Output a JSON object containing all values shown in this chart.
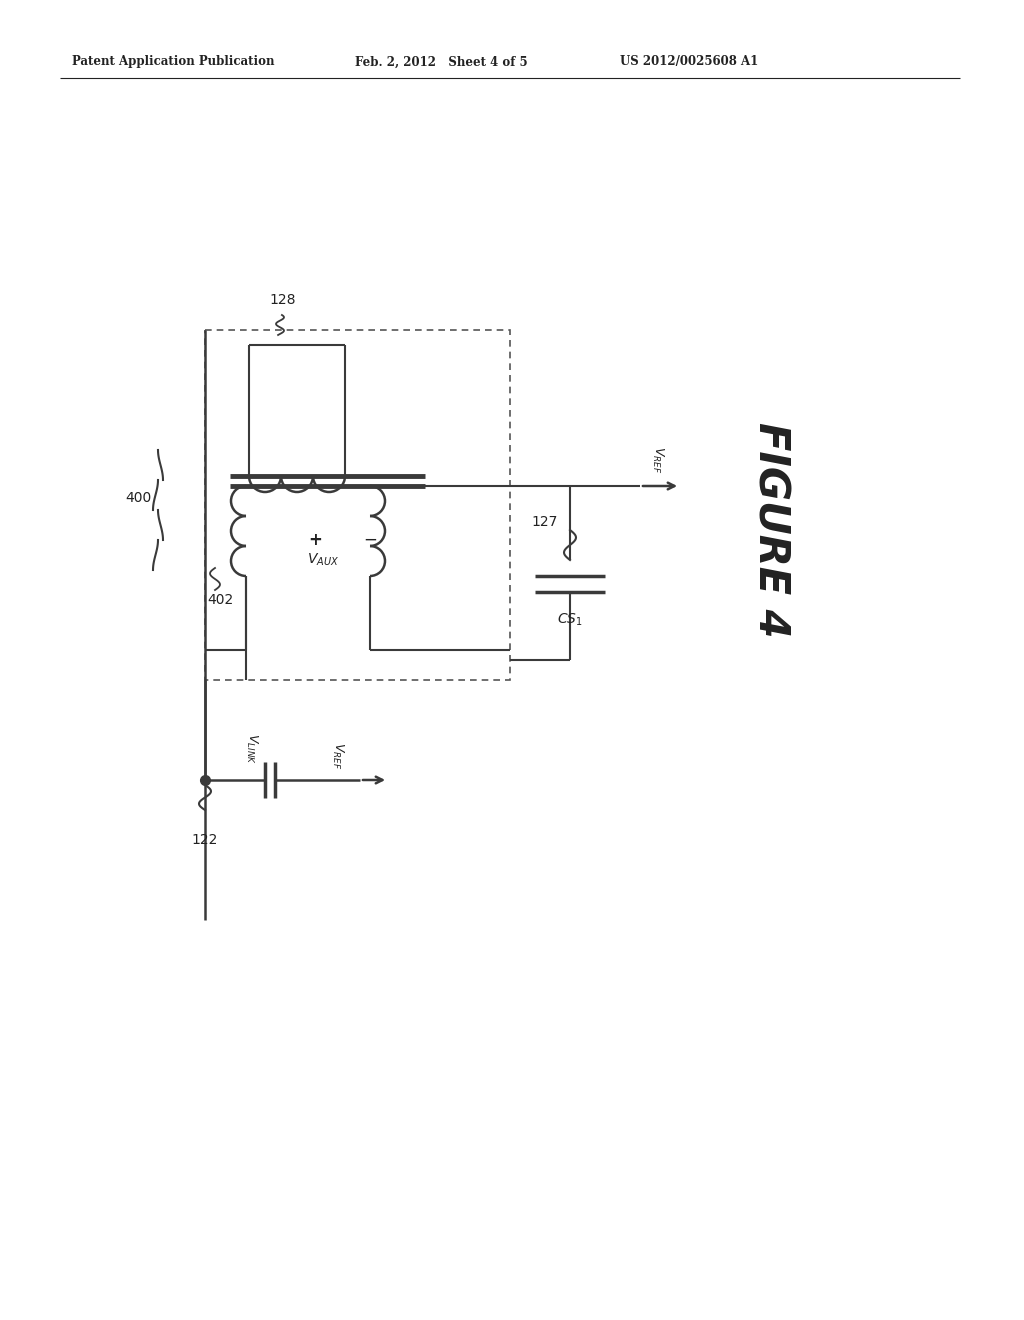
{
  "bg_color": "#ffffff",
  "header_text": "Patent Application Publication",
  "header_date": "Feb. 2, 2012   Sheet 4 of 5",
  "header_patent": "US 2012/0025608 A1",
  "figure_label": "FIGURE 4",
  "label_400": "400",
  "label_402": "402",
  "label_128": "128",
  "label_127": "127",
  "label_122": "122",
  "line_color": "#3a3a3a",
  "dashed_color": "#555555",
  "text_color": "#222222",
  "fig_w": 10.24,
  "fig_h": 13.2,
  "dpi": 100
}
